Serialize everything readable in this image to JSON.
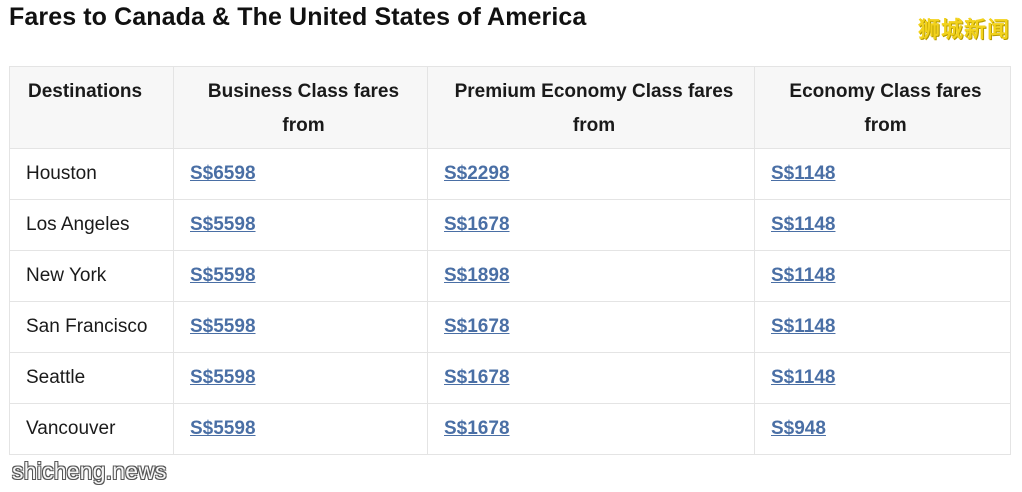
{
  "title": "Fares to Canada & The United States of America",
  "watermarks": {
    "top_right": "狮城新闻",
    "bottom_left": "shicheng.news"
  },
  "table": {
    "headers": [
      "Destinations",
      "Business Class fares from",
      "Premium Economy Class fares from",
      "Economy Class fares from"
    ],
    "rows": [
      {
        "destination": "Houston",
        "business": "S$6598",
        "premium": "S$2298",
        "economy": "S$1148"
      },
      {
        "destination": "Los Angeles",
        "business": "S$5598",
        "premium": "S$1678",
        "economy": "S$1148"
      },
      {
        "destination": "New York",
        "business": "S$5598",
        "premium": "S$1898",
        "economy": "S$1148"
      },
      {
        "destination": "San Francisco",
        "business": "S$5598",
        "premium": "S$1678",
        "economy": "S$1148"
      },
      {
        "destination": "Seattle",
        "business": "S$5598",
        "premium": "S$1678",
        "economy": "S$1148"
      },
      {
        "destination": "Vancouver",
        "business": "S$5598",
        "premium": "S$1678",
        "economy": "S$948"
      }
    ]
  },
  "colors": {
    "link": "#4a6fa5",
    "header_bg": "#f7f7f7",
    "border": "#e4e4e4",
    "watermark_top": "#f2d21c"
  }
}
